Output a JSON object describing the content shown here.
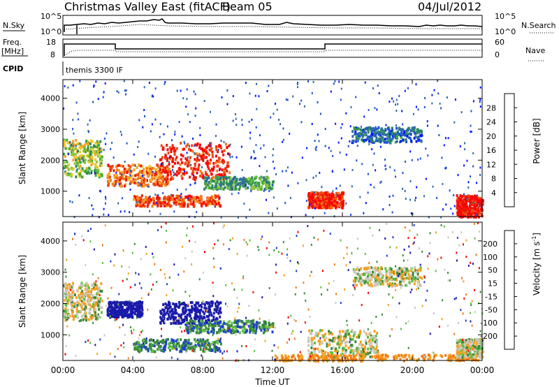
{
  "header": {
    "title_left": "Christmas Valley East (fitACF)",
    "beam": "Beam 05",
    "date": "04/Jul/2012"
  },
  "params": {
    "nsky_label": "N.Sky",
    "nsky_ticks": [
      "10^5",
      "10^0"
    ],
    "nsearch_label": "N.Search",
    "nsearch_ticks": [
      "10^5",
      "10^0"
    ],
    "freq_label": "Freq.",
    "freq_unit": "[MHz]",
    "freq_ticks": [
      "18",
      "8"
    ],
    "nave_label": "Nave",
    "nave_ticks": [
      "60",
      "0"
    ],
    "cpid_label": "CPID",
    "cpid_value": "themis 3300 IF"
  },
  "chart_data": [
    {
      "type": "heatmap",
      "panel": "power",
      "xlabel": "",
      "ylabel": "Slant Range [km]",
      "yticks": [
        "1000",
        "2000",
        "3000",
        "4000"
      ],
      "ylim": [
        180,
        4600
      ],
      "xlim": [
        0,
        24
      ],
      "colorbar": {
        "label": "Power [dB]",
        "ticks": [
          "4",
          "8",
          "12",
          "16",
          "20",
          "24",
          "28"
        ],
        "colors": [
          "#0018ff",
          "#1e4fd8",
          "#2e6aa8",
          "#2d8a5a",
          "#3aaa3a",
          "#8cc63c",
          "#f2c62a",
          "#f5a020",
          "#f27a14",
          "#ee4a10",
          "#e51a0a",
          "#ff0000"
        ]
      },
      "regions": [
        {
          "t": [
            0.0,
            2.2
          ],
          "r": [
            1500,
            2700
          ],
          "level": 16
        },
        {
          "t": [
            2.5,
            6.0
          ],
          "r": [
            1200,
            1900
          ],
          "level": 24
        },
        {
          "t": [
            5.5,
            9.5
          ],
          "r": [
            1400,
            2600
          ],
          "level": 28
        },
        {
          "t": [
            4.0,
            9.0
          ],
          "r": [
            550,
            900
          ],
          "level": 26
        },
        {
          "t": [
            8.0,
            12.0
          ],
          "r": [
            1100,
            1500
          ],
          "level": 12
        },
        {
          "t": [
            14.0,
            16.0
          ],
          "r": [
            500,
            1000
          ],
          "level": 28
        },
        {
          "t": [
            16.5,
            20.5
          ],
          "r": [
            2600,
            3100
          ],
          "level": 8
        },
        {
          "t": [
            22.5,
            24.0
          ],
          "r": [
            200,
            900
          ],
          "level": 30
        }
      ]
    },
    {
      "type": "heatmap",
      "panel": "velocity",
      "xlabel": "Time UT",
      "ylabel": "Slant Range [km]",
      "xticks": [
        "00:00",
        "04:00",
        "08:00",
        "12:00",
        "16:00",
        "20:00",
        "00:00"
      ],
      "yticks": [
        "1000",
        "2000",
        "3000",
        "4000"
      ],
      "ylim": [
        180,
        4600
      ],
      "xlim": [
        0,
        24
      ],
      "colorbar": {
        "label": "Velocity [m s^-1]",
        "ticks": [
          "200",
          "100",
          "50",
          "15",
          "-15",
          "-50",
          "-100",
          "-200"
        ],
        "colors": [
          "#1a1aaa",
          "#2040d8",
          "#3a8a3a",
          "#60c040",
          "#c8c8c0",
          "#f5a020",
          "#f27a14",
          "#ff0000"
        ]
      },
      "regions": [
        {
          "t": [
            0.0,
            2.2
          ],
          "r": [
            1500,
            2700
          ],
          "level": 0
        },
        {
          "t": [
            2.5,
            4.5
          ],
          "r": [
            1600,
            2100
          ],
          "level": 150
        },
        {
          "t": [
            5.5,
            9.0
          ],
          "r": [
            1400,
            2100
          ],
          "level": 180
        },
        {
          "t": [
            4.0,
            9.0
          ],
          "r": [
            500,
            900
          ],
          "level": 40
        },
        {
          "t": [
            7.0,
            12.0
          ],
          "r": [
            1100,
            1500
          ],
          "level": 40
        },
        {
          "t": [
            14.0,
            18.0
          ],
          "r": [
            300,
            1200
          ],
          "level": 0
        },
        {
          "t": [
            16.5,
            20.5
          ],
          "r": [
            2600,
            3200
          ],
          "level": 0
        },
        {
          "t": [
            12.0,
            24.0
          ],
          "r": [
            200,
            400
          ],
          "level": -40
        },
        {
          "t": [
            22.5,
            24.0
          ],
          "r": [
            300,
            900
          ],
          "level": 0
        }
      ]
    }
  ]
}
